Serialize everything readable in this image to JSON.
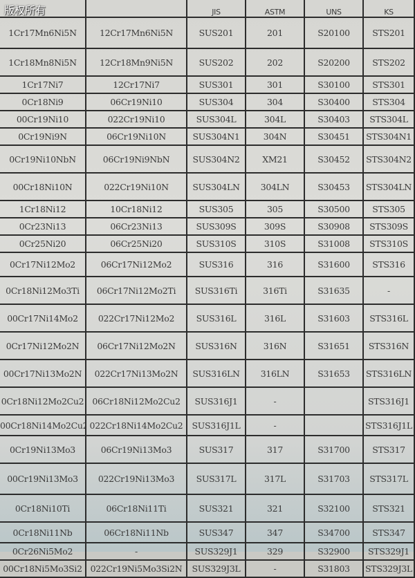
{
  "watermark": "版权所有",
  "headers": [
    "",
    "",
    "JIS",
    "ASTM",
    "UNS",
    "KS"
  ],
  "rows": [
    [
      "1Cr17Mn6Ni5N",
      "12Cr17Mn6Ni5N",
      "SUS201",
      "201",
      "S20100",
      "STS201"
    ],
    [
      "1Cr18Mn8Ni5N",
      "12Cr18Mn9Ni5N",
      "SUS202",
      "202",
      "S20200",
      "STS202"
    ],
    [
      "1Cr17Ni7",
      "12Cr17Ni7",
      "SUS301",
      "301",
      "S30100",
      "STS301"
    ],
    [
      "0Cr18Ni9",
      "06Cr19Ni10",
      "SUS304",
      "304",
      "S30400",
      "STS304"
    ],
    [
      "00Cr19Ni10",
      "022Cr19Ni10",
      "SUS304L",
      "304L",
      "S30403",
      "STS304L"
    ],
    [
      "0Cr19Ni9N",
      "06Cr19Ni10N",
      "SUS304N1",
      "304N",
      "S30451",
      "STS304N1"
    ],
    [
      "0Cr19Ni10NbN",
      "06Cr19Ni9NbN",
      "SUS304N2",
      "XM21",
      "S30452",
      "STS304N2"
    ],
    [
      "00Cr18Ni10N",
      "022Cr19Ni10N",
      "SUS304LN",
      "304LN",
      "S30453",
      "STS304LN"
    ],
    [
      "1Cr18Ni12",
      "10Cr18Ni12",
      "SUS305",
      "305",
      "S30500",
      "STS305"
    ],
    [
      "0Cr23Ni13",
      "06Cr23Ni13",
      "SUS309S",
      "309S",
      "S30908",
      "STS309S"
    ],
    [
      "0Cr25Ni20",
      "06Cr25Ni20",
      "SUS310S",
      "310S",
      "S31008",
      "STS310S"
    ],
    [
      "0Cr17Ni12Mo2",
      "06Cr17Ni12Mo2",
      "SUS316",
      "316",
      "S31600",
      "STS316"
    ],
    [
      "0Cr18Ni12Mo3Ti",
      "06Cr17Ni12Mo2Ti",
      "SUS316Ti",
      "316Ti",
      "S31635",
      "-"
    ],
    [
      "00Cr17Ni14Mo2",
      "022Cr17Ni12Mo2",
      "SUS316L",
      "316L",
      "S31603",
      "STS316L"
    ],
    [
      "0Cr17Ni12Mo2N",
      "06Cr17Ni12Mo2N",
      "SUS316N",
      "316N",
      "S31651",
      "STS316N"
    ],
    [
      "00Cr17Ni13Mo2N",
      "022Cr17Ni13Mo2N",
      "SUS316LN",
      "316LN",
      "S31653",
      "STS316LN"
    ],
    [
      "0Cr18Ni12Mo2Cu2",
      "06Cr18Ni12Mo2Cu2",
      "SUS316J1",
      "-",
      "",
      "STS316J1"
    ],
    [
      "00Cr18Ni14Mo2Cu2",
      "022Cr18Ni14Mo2Cu2",
      "SUS316J1L",
      "-",
      "",
      "STS316J1L"
    ],
    [
      "0Cr19Ni13Mo3",
      "06Cr19Ni13Mo3",
      "SUS317",
      "317",
      "S31700",
      "STS317"
    ],
    [
      "00Cr19Ni13Mo3",
      "022Cr19Ni13Mo3",
      "SUS317L",
      "317L",
      "S31703",
      "STS317L"
    ],
    [
      "0Cr18Ni10Ti",
      "06Cr18Ni11Ti",
      "SUS321",
      "321",
      "S32100",
      "STS321"
    ],
    [
      "0Cr18Ni11Nb",
      "06Cr18Ni11Nb",
      "SUS347",
      "347",
      "S34700",
      "STS347"
    ],
    [
      "0Cr26Ni5Mo2",
      "-",
      "SUS329J1",
      "329",
      "S32900",
      "STS329J1"
    ],
    [
      "00Cr18Ni5Mo3Si2",
      "022Cr19Ni5Mo3Si2N",
      "SUS329J3L",
      "-",
      "S31803",
      "STS329J3L"
    ]
  ]
}
